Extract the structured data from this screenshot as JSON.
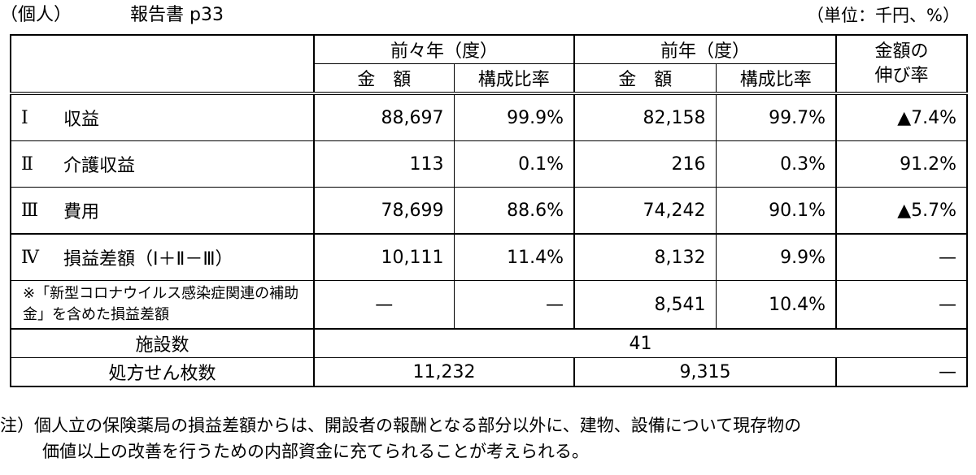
{
  "header": {
    "category": "（個人）",
    "title": "報告書 p33",
    "unit": "（単位：千円、%）"
  },
  "columns": {
    "prev2_year": "前々年（度）",
    "prev_year": "前年（度）",
    "amount": "金　額",
    "ratio": "構成比率",
    "growth_line1": "金額の",
    "growth_line2": "伸び率"
  },
  "rows": [
    {
      "num": "Ⅰ",
      "label": "収益",
      "a1": "88,697",
      "r1": "99.9%",
      "a2": "82,158",
      "r2": "99.7%",
      "g": "▲7.4%"
    },
    {
      "num": "Ⅱ",
      "label": "介護収益",
      "a1": "113",
      "r1": "0.1%",
      "a2": "216",
      "r2": "0.3%",
      "g": "91.2%"
    },
    {
      "num": "Ⅲ",
      "label": "費用",
      "a1": "78,699",
      "r1": "88.6%",
      "a2": "74,242",
      "r2": "90.1%",
      "g": "▲5.7%"
    },
    {
      "num": "Ⅳ",
      "label": "損益差額（Ⅰ＋Ⅱ－Ⅲ）",
      "a1": "10,111",
      "r1": "11.4%",
      "a2": "8,132",
      "r2": "9.9%",
      "g": "—"
    }
  ],
  "subsidy_row": {
    "label": "※「新型コロナウイルス感染症関連の補助金」を含めた損益差額",
    "a1": "—",
    "r1": "—",
    "a2": "8,541",
    "r2": "10.4%",
    "g": "—"
  },
  "facilities": {
    "label": "施設数",
    "value": "41"
  },
  "prescriptions": {
    "label": "処方せん枚数",
    "prev2": "11,232",
    "prev": "9,315",
    "growth": "—"
  },
  "footnote": {
    "line1": "注）個人立の保険薬局の損益差額からは、開設者の報酬となる部分以外に、建物、設備について現存物の",
    "line2": "価値以上の改善を行うための内部資金に充てられることが考えられる。"
  }
}
